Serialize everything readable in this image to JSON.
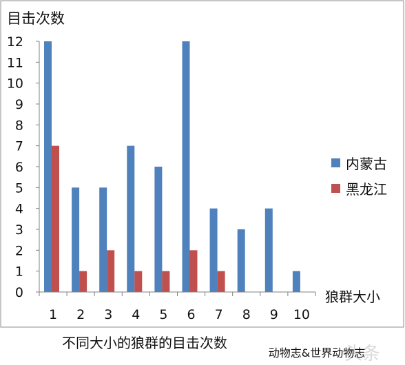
{
  "chart_data": {
    "type": "bar",
    "title": "不同大小的狼群的目击次数",
    "ylabel": "目击次数",
    "xlabel": "狼群大小",
    "categories": [
      "1",
      "2",
      "3",
      "4",
      "5",
      "6",
      "7",
      "8",
      "9",
      "10"
    ],
    "series": [
      {
        "name": "内蒙古",
        "values": [
          12,
          5,
          5,
          7,
          6,
          12,
          4,
          3,
          4,
          1
        ],
        "color": "#4f81bd"
      },
      {
        "name": "黑龙江",
        "values": [
          7,
          1,
          2,
          1,
          1,
          2,
          1,
          0,
          0,
          0
        ],
        "color": "#c0504d"
      }
    ],
    "ylim": [
      0,
      12
    ],
    "yticks": [
      0,
      1,
      2,
      3,
      4,
      5,
      6,
      7,
      8,
      9,
      10,
      11,
      12
    ],
    "grid": false,
    "legend_position": "right"
  },
  "source_caption": "动物志&世界动物志",
  "watermark": "头条"
}
